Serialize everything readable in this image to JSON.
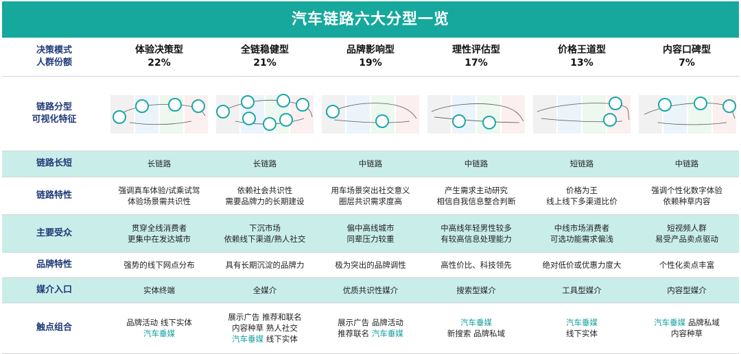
{
  "title": "汽车链路六大分型一览",
  "colors": {
    "title_bg": "#16a89c",
    "teal_row": "#c9eeea",
    "label": "#1f3a78",
    "accent_text": "#16a0a0",
    "circle_stroke": "#18a8a8"
  },
  "header": {
    "label": [
      "决策模式",
      "人群份额"
    ],
    "types": [
      {
        "name": "体验决策型",
        "share": "22%"
      },
      {
        "name": "全链稳健型",
        "share": "21%"
      },
      {
        "name": "品牌影响型",
        "share": "19%"
      },
      {
        "name": "理性评估型",
        "share": "17%"
      },
      {
        "name": "价格王道型",
        "share": "13%"
      },
      {
        "name": "内容口碑型",
        "share": "7%"
      }
    ]
  },
  "visual": {
    "label": [
      "链路分型",
      "可视化特征"
    ]
  },
  "rows": [
    {
      "label": "链路长短",
      "teal": true,
      "cells": [
        [
          "长链路"
        ],
        [
          "长链路"
        ],
        [
          "中链路"
        ],
        [
          "中链路"
        ],
        [
          "短链路"
        ],
        [
          "中链路"
        ]
      ]
    },
    {
      "label": "链路特性",
      "teal": false,
      "cells": [
        [
          "强调真车体验/试乘试驾",
          "体验场景需共识性"
        ],
        [
          "依赖社会共识性",
          "需要品牌力的长期建设"
        ],
        [
          "用车场景突出社交意义",
          "圈层共识需求度高"
        ],
        [
          "产生需求主动研究",
          "相信自我信息整合判断"
        ],
        [
          "价格为王",
          "线上线下多渠道比价"
        ],
        [
          "强调个性化数字体验",
          "依赖种草内容"
        ]
      ]
    },
    {
      "label": "主要受众",
      "teal": true,
      "cells": [
        [
          "贯穿全线消费者",
          "更集中在发达城市"
        ],
        [
          "下沉市场",
          "依赖线下渠道/熟人社交"
        ],
        [
          "偏中高线城市",
          "同辈压力较重"
        ],
        [
          "中高线年轻男性较多",
          "有较高信息处理能力"
        ],
        [
          "中线市场消费者",
          "可选功能需求偏浅"
        ],
        [
          "短视频人群",
          "易受产品卖点驱动"
        ]
      ]
    },
    {
      "label": "品牌特性",
      "teal": false,
      "cells": [
        [
          "强势的线下网点分布"
        ],
        [
          "具有长期沉淀的品牌力"
        ],
        [
          "极为突出的品牌调性"
        ],
        [
          "高性价比、科技领先"
        ],
        [
          "绝对低价或优惠力度大"
        ],
        [
          "个性化卖点丰富"
        ]
      ]
    },
    {
      "label": "媒介入口",
      "teal": true,
      "cells": [
        [
          "实体终端"
        ],
        [
          "全媒介"
        ],
        [
          "优质共识性媒介"
        ],
        [
          "搜索型媒介"
        ],
        [
          "工具型媒介"
        ],
        [
          "内容型媒介"
        ]
      ]
    }
  ],
  "touch": {
    "label": "触点组合",
    "cells": [
      [
        [
          {
            "t": "品牌活动 线下实体",
            "hl": false
          }
        ],
        [
          {
            "t": "汽车垂媒",
            "hl": true
          }
        ]
      ],
      [
        [
          {
            "t": "展示广告 推荐和联名",
            "hl": false
          }
        ],
        [
          {
            "t": "内容种草 熟人社交",
            "hl": false
          }
        ],
        [
          {
            "t": "汽车垂媒",
            "hl": true
          },
          {
            "t": " 线下实体",
            "hl": false
          }
        ]
      ],
      [
        [
          {
            "t": "展示广告 品牌活动",
            "hl": false
          }
        ],
        [
          {
            "t": "推荐联名 ",
            "hl": false
          },
          {
            "t": "汽车垂媒",
            "hl": true
          }
        ]
      ],
      [
        [
          {
            "t": "汽车垂媒",
            "hl": true
          }
        ],
        [
          {
            "t": "新搜索 品牌私域",
            "hl": false
          }
        ]
      ],
      [
        [
          {
            "t": "汽车垂媒",
            "hl": true
          }
        ],
        [
          {
            "t": "线下实体",
            "hl": false
          }
        ]
      ],
      [
        [
          {
            "t": "汽车垂媒",
            "hl": true
          },
          {
            "t": " 品牌私域",
            "hl": false
          }
        ],
        [
          {
            "t": "内容种草",
            "hl": false
          }
        ]
      ]
    ]
  }
}
